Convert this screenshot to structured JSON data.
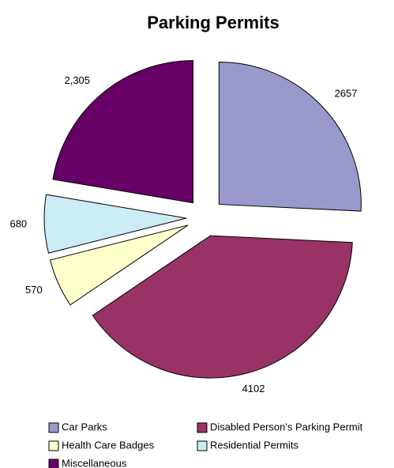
{
  "chart_data": {
    "type": "pie",
    "title": "Parking Permits",
    "categories": [
      "Car Parks",
      "Disabled Person's Parking Permit",
      "Health Care Badges",
      "Residential Permits",
      "Miscellaneous"
    ],
    "values": [
      2657,
      4102,
      570,
      680,
      2305
    ],
    "value_labels": [
      "2657",
      "4102",
      "570",
      "680",
      "2,305"
    ],
    "colors": [
      "#9999cc",
      "#993366",
      "#ffffcc",
      "#ccecf4",
      "#660066"
    ]
  }
}
